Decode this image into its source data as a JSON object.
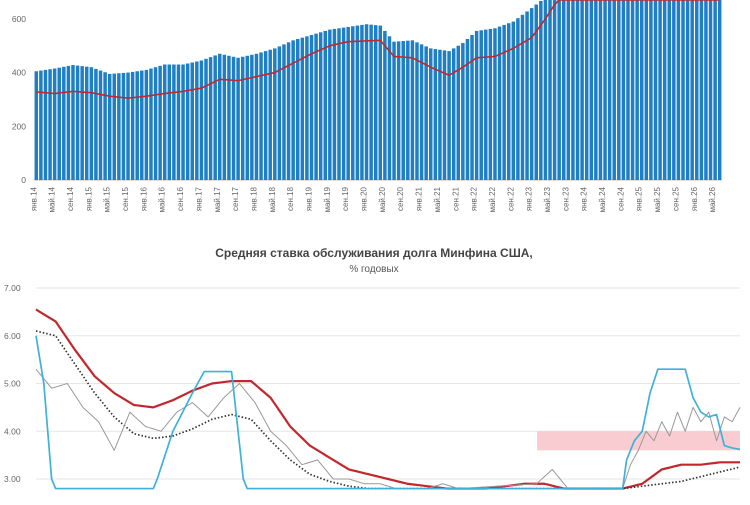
{
  "chart_data": [
    {
      "type": "bar",
      "title": "",
      "xlabel": "",
      "ylabel": "",
      "ylim": [
        0,
        700
      ],
      "yticks": [
        "0",
        "200",
        "400",
        "600"
      ],
      "xtick_labels": [
        "янв.14",
        "май.14",
        "сен.14",
        "янв.15",
        "май.15",
        "сен.15",
        "янв.16",
        "май.16",
        "сен.16",
        "янв.17",
        "май.17",
        "сен.17",
        "янв.18",
        "май.18",
        "сен.18",
        "янв.19",
        "май.19",
        "сен.19",
        "янв.20",
        "май.20",
        "сен.20",
        "янв.21",
        "май.21",
        "сен.21",
        "янв.22",
        "май.22",
        "сен.22",
        "янв.23",
        "май.23",
        "сен.23",
        "янв.24",
        "май.24",
        "сен.24",
        "янв.25",
        "май.25",
        "сен.25",
        "янв.26",
        "май.26"
      ],
      "bar_color": "#1f7fc4",
      "line_color": "#c0282d",
      "series": [
        {
          "kind": "bar",
          "anchors": [
            [
              0,
              405
            ],
            [
              4,
              415
            ],
            [
              8,
              428
            ],
            [
              12,
              420
            ],
            [
              16,
              395
            ],
            [
              20,
              400
            ],
            [
              24,
              410
            ],
            [
              28,
              430
            ],
            [
              32,
              430
            ],
            [
              36,
              445
            ],
            [
              40,
              470
            ],
            [
              44,
              455
            ],
            [
              48,
              470
            ],
            [
              52,
              490
            ],
            [
              56,
              520
            ],
            [
              60,
              540
            ],
            [
              64,
              560
            ],
            [
              68,
              570
            ],
            [
              72,
              580
            ],
            [
              75,
              575
            ],
            [
              78,
              515
            ],
            [
              82,
              520
            ],
            [
              86,
              490
            ],
            [
              90,
              480
            ],
            [
              93,
              510
            ],
            [
              96,
              555
            ],
            [
              100,
              565
            ],
            [
              104,
              590
            ],
            [
              108,
              640
            ],
            [
              111,
              680
            ],
            [
              114,
              700
            ],
            [
              150,
              700
            ]
          ]
        },
        {
          "kind": "line",
          "anchors": [
            [
              0,
              328
            ],
            [
              4,
              322
            ],
            [
              8,
              330
            ],
            [
              12,
              325
            ],
            [
              16,
              312
            ],
            [
              20,
              305
            ],
            [
              24,
              312
            ],
            [
              28,
              322
            ],
            [
              32,
              330
            ],
            [
              36,
              342
            ],
            [
              40,
              375
            ],
            [
              44,
              370
            ],
            [
              48,
              385
            ],
            [
              52,
              400
            ],
            [
              56,
              435
            ],
            [
              60,
              470
            ],
            [
              64,
              500
            ],
            [
              68,
              515
            ],
            [
              72,
              518
            ],
            [
              75,
              520
            ],
            [
              78,
              460
            ],
            [
              82,
              455
            ],
            [
              86,
              420
            ],
            [
              90,
              390
            ],
            [
              93,
              420
            ],
            [
              96,
              455
            ],
            [
              100,
              460
            ],
            [
              104,
              490
            ],
            [
              108,
              530
            ],
            [
              111,
              600
            ],
            [
              114,
              680
            ],
            [
              116,
              700
            ],
            [
              150,
              700
            ]
          ]
        }
      ]
    },
    {
      "type": "line",
      "title": "Средняя ставка обслуживания долга Минфина США,",
      "subtitle": "% годовых",
      "xlabel": "",
      "ylabel": "",
      "ylim": [
        2.8,
        7.0
      ],
      "yticks": [
        "3.00",
        "4.00",
        "5.00",
        "6.00",
        "7.00"
      ],
      "band": {
        "from": 3.6,
        "to": 4.0,
        "color": "#f7c6cc"
      },
      "series": [
        {
          "color": "#c0282d",
          "anchors": [
            [
              0,
              6.55
            ],
            [
              5,
              6.3
            ],
            [
              10,
              5.7
            ],
            [
              15,
              5.15
            ],
            [
              20,
              4.8
            ],
            [
              25,
              4.55
            ],
            [
              30,
              4.5
            ],
            [
              35,
              4.65
            ],
            [
              40,
              4.85
            ],
            [
              45,
              5.0
            ],
            [
              50,
              5.05
            ],
            [
              55,
              5.05
            ],
            [
              60,
              4.7
            ],
            [
              65,
              4.1
            ],
            [
              70,
              3.7
            ],
            [
              75,
              3.45
            ],
            [
              80,
              3.2
            ],
            [
              85,
              3.1
            ],
            [
              90,
              3.0
            ],
            [
              95,
              2.9
            ],
            [
              100,
              2.85
            ],
            [
              105,
              2.8
            ],
            [
              115,
              2.8
            ],
            [
              120,
              2.85
            ],
            [
              125,
              2.9
            ],
            [
              130,
              2.9
            ],
            [
              135,
              2.8
            ],
            [
              150,
              2.8
            ],
            [
              155,
              2.9
            ],
            [
              160,
              3.2
            ],
            [
              165,
              3.3
            ],
            [
              170,
              3.3
            ],
            [
              175,
              3.35
            ],
            [
              180,
              3.35
            ]
          ]
        },
        {
          "color": "#333333",
          "dash": "1.5,2",
          "anchors": [
            [
              0,
              6.1
            ],
            [
              5,
              6.0
            ],
            [
              10,
              5.4
            ],
            [
              15,
              4.8
            ],
            [
              20,
              4.3
            ],
            [
              25,
              3.95
            ],
            [
              30,
              3.85
            ],
            [
              35,
              3.9
            ],
            [
              40,
              4.05
            ],
            [
              45,
              4.25
            ],
            [
              50,
              4.35
            ],
            [
              55,
              4.25
            ],
            [
              60,
              3.8
            ],
            [
              65,
              3.4
            ],
            [
              70,
              3.1
            ],
            [
              75,
              2.95
            ],
            [
              80,
              2.85
            ],
            [
              85,
              2.8
            ],
            [
              150,
              2.8
            ],
            [
              155,
              2.85
            ],
            [
              160,
              2.9
            ],
            [
              165,
              2.95
            ],
            [
              170,
              3.05
            ],
            [
              175,
              3.15
            ],
            [
              180,
              3.25
            ]
          ]
        },
        {
          "color": "#999999",
          "width": 1.0,
          "anchors": [
            [
              0,
              5.3
            ],
            [
              4,
              4.9
            ],
            [
              8,
              5.0
            ],
            [
              12,
              4.5
            ],
            [
              16,
              4.2
            ],
            [
              20,
              3.6
            ],
            [
              24,
              4.4
            ],
            [
              28,
              4.1
            ],
            [
              32,
              4.0
            ],
            [
              36,
              4.4
            ],
            [
              40,
              4.6
            ],
            [
              44,
              4.3
            ],
            [
              48,
              4.7
            ],
            [
              52,
              5.0
            ],
            [
              56,
              4.6
            ],
            [
              60,
              4.0
            ],
            [
              64,
              3.7
            ],
            [
              68,
              3.3
            ],
            [
              72,
              3.4
            ],
            [
              76,
              3.0
            ],
            [
              80,
              3.0
            ],
            [
              84,
              2.9
            ],
            [
              88,
              2.9
            ],
            [
              92,
              2.8
            ],
            [
              100,
              2.8
            ],
            [
              104,
              2.9
            ],
            [
              108,
              2.8
            ],
            [
              128,
              2.9
            ],
            [
              132,
              3.2
            ],
            [
              136,
              2.8
            ],
            [
              150,
              2.8
            ],
            [
              152,
              3.3
            ],
            [
              154,
              3.6
            ],
            [
              156,
              4.0
            ],
            [
              158,
              3.8
            ],
            [
              160,
              4.2
            ],
            [
              162,
              3.9
            ],
            [
              164,
              4.4
            ],
            [
              166,
              4.0
            ],
            [
              168,
              4.5
            ],
            [
              170,
              4.2
            ],
            [
              172,
              4.4
            ],
            [
              174,
              3.8
            ],
            [
              176,
              4.3
            ],
            [
              178,
              4.2
            ],
            [
              180,
              4.5
            ]
          ]
        },
        {
          "color": "#3fb1d9",
          "anchors": [
            [
              0,
              6.0
            ],
            [
              2,
              5.0
            ],
            [
              4,
              3.0
            ],
            [
              5,
              2.8
            ],
            [
              30,
              2.8
            ],
            [
              31,
              3.0
            ],
            [
              35,
              4.0
            ],
            [
              40,
              4.8
            ],
            [
              43,
              5.25
            ],
            [
              50,
              5.25
            ],
            [
              51,
              4.5
            ],
            [
              53,
              3.0
            ],
            [
              54,
              2.8
            ],
            [
              150,
              2.8
            ],
            [
              151,
              3.4
            ],
            [
              153,
              3.8
            ],
            [
              155,
              4.0
            ],
            [
              157,
              4.8
            ],
            [
              159,
              5.3
            ],
            [
              166,
              5.3
            ],
            [
              168,
              4.7
            ],
            [
              170,
              4.4
            ],
            [
              172,
              4.3
            ],
            [
              174,
              4.35
            ],
            [
              176,
              3.7
            ],
            [
              178,
              3.65
            ],
            [
              180,
              3.62
            ]
          ]
        }
      ]
    }
  ]
}
